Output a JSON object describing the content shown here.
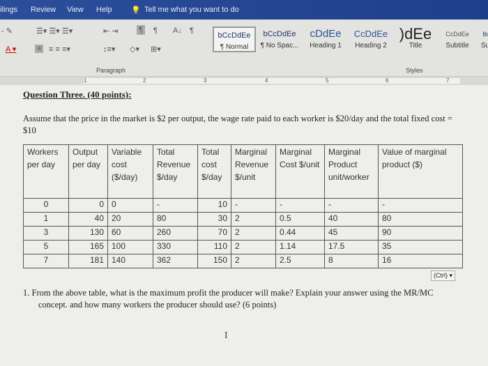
{
  "menu": {
    "tabs": [
      "ilings",
      "Review",
      "View",
      "Help"
    ],
    "tell_me": "Tell me what you want to do"
  },
  "ribbon": {
    "paragraph_label": "Paragraph",
    "styles_label": "Styles",
    "styles": [
      {
        "preview": "bCcDdEe",
        "label": "¶ Normal"
      },
      {
        "preview": "bCcDdEe",
        "label": "¶ No Spac..."
      },
      {
        "preview": "cDdEe",
        "label": "Heading 1"
      },
      {
        "preview": "CcDdEe",
        "label": "Heading 2"
      },
      {
        "preview": ")dEe",
        "label": "Title"
      },
      {
        "preview": "CcDdEe",
        "label": "Subtitle"
      },
      {
        "preview": "Ib",
        "label": "Su"
      }
    ]
  },
  "ruler": {
    "marks": [
      "1",
      "2",
      "3",
      "4",
      "5",
      "6",
      "7"
    ]
  },
  "document": {
    "question_title": "Question Three. (40 points):",
    "intro": "Assume that the price in the market is $2 per output, the wage rate paid to each worker is $20/day and the total fixed cost = $10",
    "table": {
      "headers": [
        "Workers per day",
        "Output per day",
        "Variable cost ($/day)",
        "Total Revenue $/day",
        "Total cost $/day",
        "Marginal Revenue $/unit",
        "Marginal Cost $/unit",
        "Marginal Product unit/worker",
        "Value of marginal product ($)"
      ],
      "rows": [
        [
          "0",
          "0",
          "0",
          "-",
          "10",
          "-",
          "-",
          "-",
          "-"
        ],
        [
          "1",
          "40",
          "20",
          "80",
          "30",
          "2",
          "0.5",
          "40",
          "80"
        ],
        [
          "3",
          "130",
          "60",
          "260",
          "70",
          "2",
          "0.44",
          "45",
          "90"
        ],
        [
          "5",
          "165",
          "100",
          "330",
          "110",
          "2",
          "1.14",
          "17.5",
          "35"
        ],
        [
          "7",
          "181",
          "140",
          "362",
          "150",
          "2",
          "2.5",
          "8",
          "16"
        ]
      ]
    },
    "paste_options": "(Ctrl) ▾",
    "question_1": "1.  From the above table, what is the maximum profit the producer will make? Explain your answer using the MR/MC concept. and how many workers the producer should use? (6 points)"
  }
}
